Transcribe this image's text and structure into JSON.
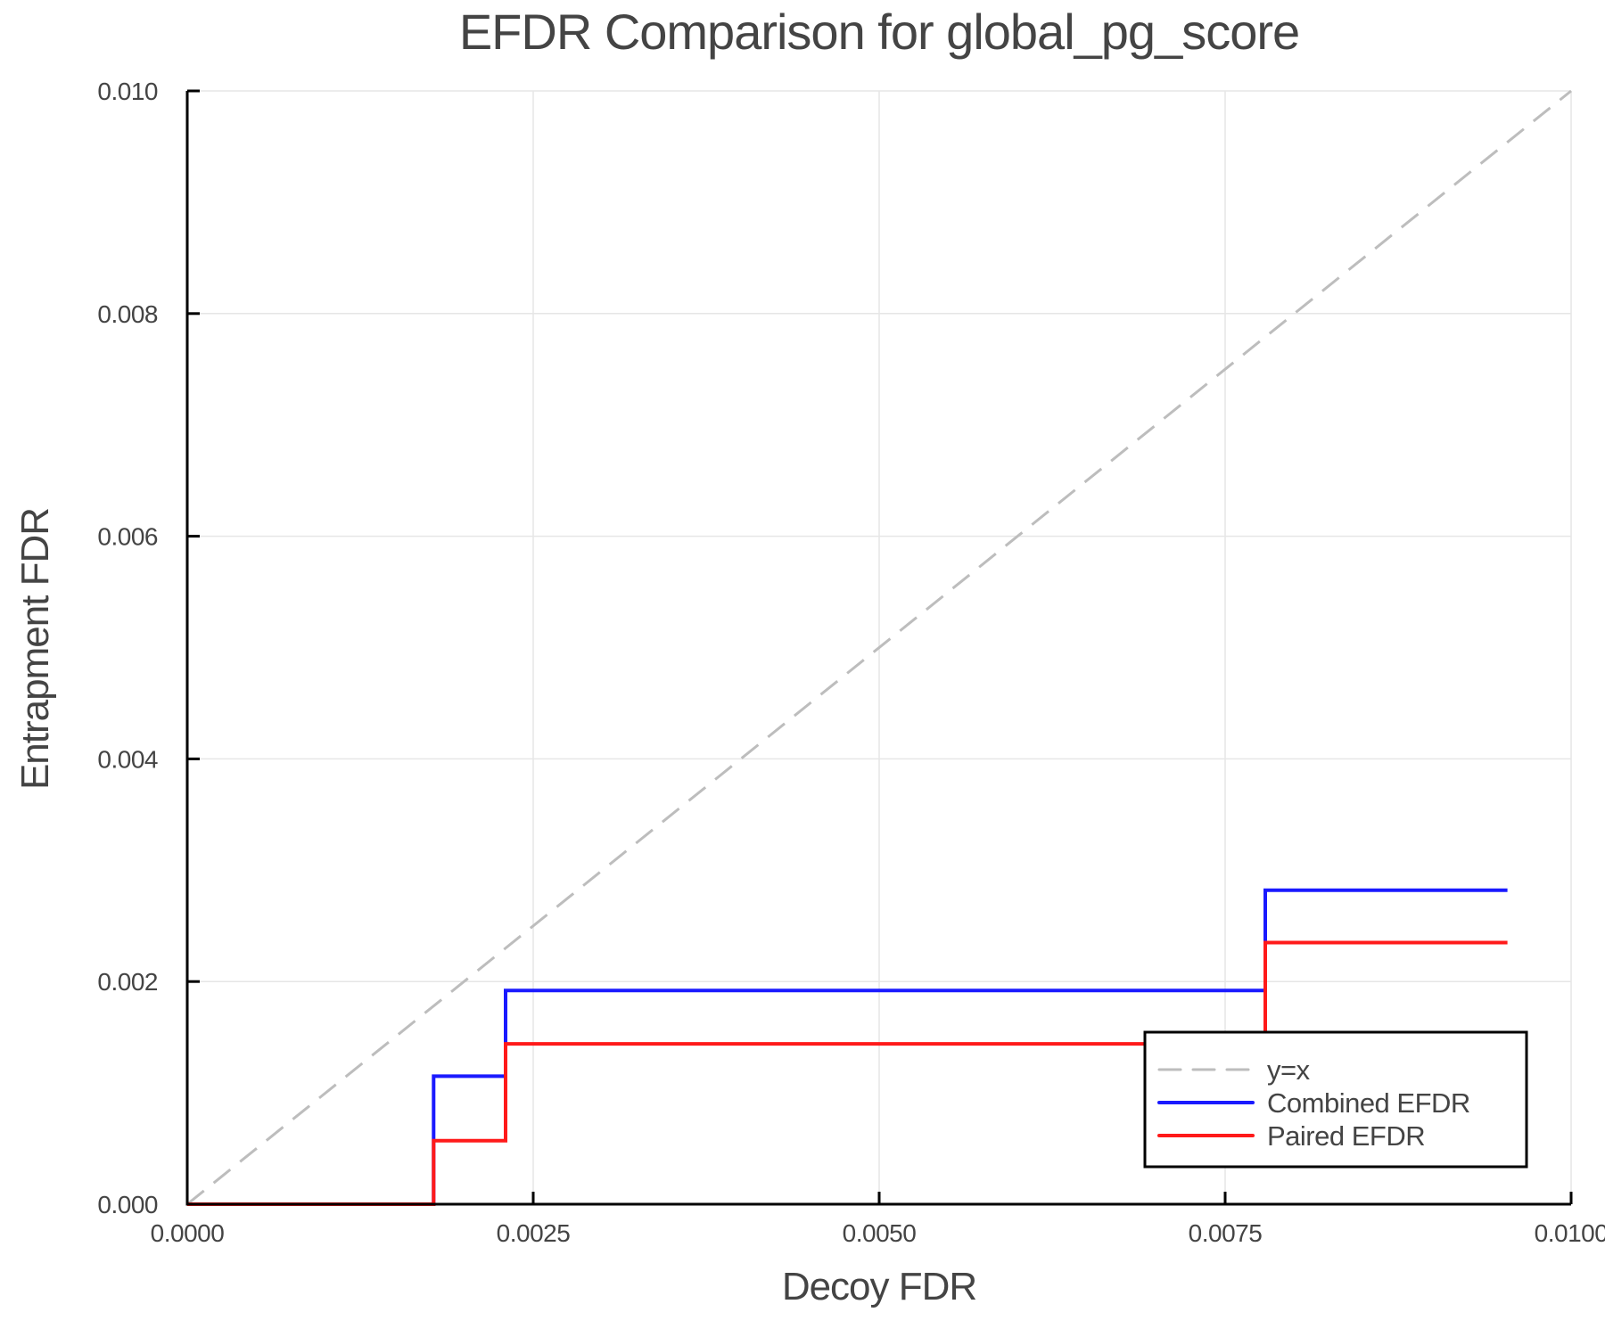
{
  "chart_data": {
    "type": "line",
    "title": "EFDR Comparison for global_pg_score",
    "xlabel": "Decoy FDR",
    "ylabel": "Entrapment FDR",
    "xlim": [
      0.0,
      0.01
    ],
    "ylim": [
      0.0,
      0.01
    ],
    "grid": true,
    "legend_position": "bottom-right",
    "x_ticks": [
      "0.0000",
      "0.0025",
      "0.0050",
      "0.0075",
      "0.0100"
    ],
    "x_tick_values": [
      0.0,
      0.0025,
      0.005,
      0.0075,
      0.01
    ],
    "y_ticks": [
      "0.000",
      "0.002",
      "0.004",
      "0.006",
      "0.008",
      "0.010"
    ],
    "y_tick_values": [
      0.0,
      0.002,
      0.004,
      0.006,
      0.008,
      0.01
    ],
    "series": [
      {
        "name": "y=x",
        "style": "dashed",
        "color": "#bdbdbd",
        "x": [
          0.0,
          0.01
        ],
        "y": [
          0.0,
          0.01
        ]
      },
      {
        "name": "Combined EFDR",
        "style": "step",
        "color": "#1a1aff",
        "x": [
          0.0,
          0.00178,
          0.00178,
          0.0023,
          0.0023,
          0.00779,
          0.00779,
          0.00954
        ],
        "y": [
          0.0,
          0.0,
          0.00115,
          0.00115,
          0.00192,
          0.00192,
          0.00282,
          0.00282
        ]
      },
      {
        "name": "Paired EFDR",
        "style": "step",
        "color": "#ff1a1a",
        "x": [
          0.0,
          0.00178,
          0.00178,
          0.0023,
          0.0023,
          0.00779,
          0.00779,
          0.00954
        ],
        "y": [
          0.0,
          0.0,
          0.00057,
          0.00057,
          0.00144,
          0.00144,
          0.00235,
          0.00235
        ]
      }
    ]
  }
}
